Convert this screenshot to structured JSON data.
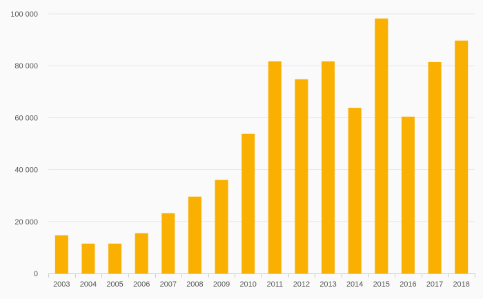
{
  "chart_data": {
    "type": "bar",
    "title": "",
    "xlabel": "",
    "ylabel": "",
    "categories": [
      "2003",
      "2004",
      "2005",
      "2006",
      "2007",
      "2008",
      "2009",
      "2010",
      "2011",
      "2012",
      "2013",
      "2014",
      "2015",
      "2016",
      "2017",
      "2018"
    ],
    "values": [
      14700,
      11500,
      11500,
      15500,
      23200,
      29600,
      36000,
      53800,
      81700,
      74800,
      81700,
      63800,
      98200,
      60400,
      81400,
      89700
    ],
    "ylim": [
      0,
      100000
    ],
    "yticks": [
      0,
      20000,
      40000,
      60000,
      80000,
      100000
    ],
    "ytick_labels": [
      "0",
      "20 000",
      "40 000",
      "60 000",
      "80 000",
      "100 000"
    ],
    "grid": true,
    "legend": "none",
    "colors": {
      "bar": "#f9b000",
      "grid": "#e6e6e6",
      "axis": "#cccccc",
      "text": "#555555",
      "background": "#fafafa"
    }
  }
}
